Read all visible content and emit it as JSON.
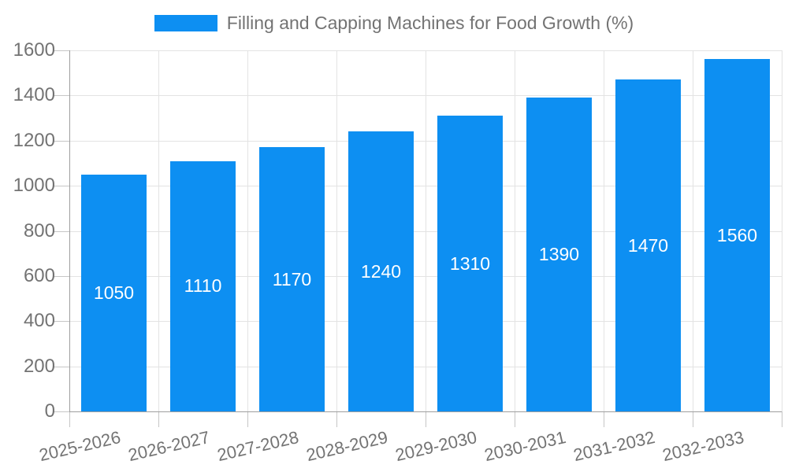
{
  "legend": {
    "label": "Filling and Capping Machines for Food Growth (%)"
  },
  "chart_data": {
    "type": "bar",
    "title": "Filling and Capping Machines for Food Growth (%)",
    "series_name": "Filling and Capping Machines for Food Growth (%)",
    "categories": [
      "2025-2026",
      "2026-2027",
      "2027-2028",
      "2028-2029",
      "2029-2030",
      "2030-2031",
      "2031-2032",
      "2032-2033"
    ],
    "values": [
      1050,
      1110,
      1170,
      1240,
      1310,
      1390,
      1470,
      1560
    ],
    "bar_value_labels": [
      "1050",
      "1110",
      "1170",
      "1240",
      "1310",
      "1390",
      "1470",
      "1560"
    ],
    "xlabel": "",
    "ylabel": "",
    "ylim": [
      0,
      1600
    ],
    "yticks": [
      0,
      200,
      400,
      600,
      800,
      1000,
      1200,
      1400,
      1600
    ],
    "grid": true,
    "legend_position": "top",
    "value_label_position": "center-of-bar",
    "colors": {
      "bar": "#0D8FF2",
      "grid": "#E3E3E3",
      "tick": "#C6C6C6",
      "axis": "#9E9E9E",
      "text": "#737373",
      "value_label": "#FFFFFF",
      "background": "#FFFFFF"
    }
  }
}
